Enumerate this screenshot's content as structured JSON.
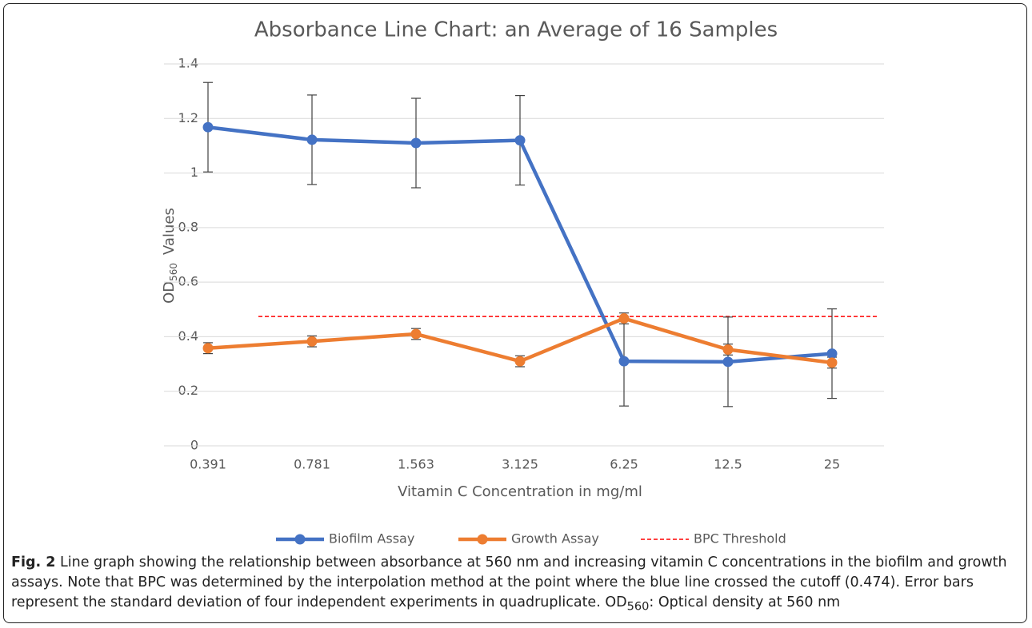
{
  "chart_data": {
    "type": "line",
    "title": "Absorbance Line Chart: an Average of 16 Samples",
    "x_label": "Vitamin C Concentration in mg/ml",
    "y_label": {
      "main": "OD",
      "sub": "560",
      "rest": "Values"
    },
    "categories": [
      "0.391",
      "0.781",
      "1.563",
      "3.125",
      "6.25",
      "12.5",
      "25"
    ],
    "series": [
      {
        "name": "Biofilm Assay",
        "color": "#4472c4",
        "values": [
          1.168,
          1.122,
          1.11,
          1.12,
          0.31,
          0.308,
          0.338
        ],
        "errors": [
          0.164,
          0.164,
          0.164,
          0.164,
          0.164,
          0.164,
          0.164
        ]
      },
      {
        "name": "Growth Assay",
        "color": "#ed7d31",
        "values": [
          0.358,
          0.383,
          0.41,
          0.31,
          0.467,
          0.353,
          0.305
        ],
        "errors": [
          0.02,
          0.02,
          0.02,
          0.02,
          0.02,
          0.02,
          0.02
        ]
      }
    ],
    "threshold": {
      "name": "BPC Threshold",
      "value": 0.474,
      "color": "#ff0000"
    },
    "ylim": [
      0,
      1.4
    ],
    "yticks": [
      0,
      0.2,
      0.4,
      0.6,
      0.8,
      1,
      1.2,
      1.4
    ],
    "grid": true,
    "legend": "bottom"
  },
  "caption": {
    "label": "Fig. 2",
    "parts": [
      "Line graph showing the relationship between absorbance at 560 nm and increasing vitamin C concentrations in the biofilm and growth assays. Note that BPC was determined by the interpolation method at the point where the blue line crossed the cutoff (0.474). Error bars represent the standard deviation of four independent experiments in quadruplicate. OD",
      "560",
      ": Optical density at 560 nm"
    ]
  }
}
